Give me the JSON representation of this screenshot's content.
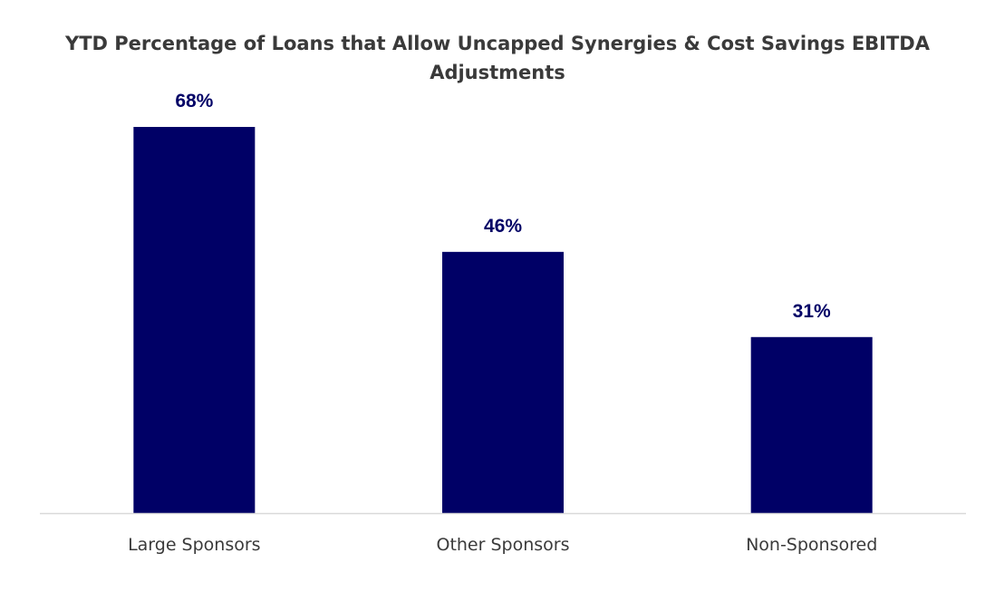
{
  "chart_data": {
    "type": "bar",
    "title_lines": [
      "YTD Percentage of Loans that Allow Uncapped Synergies & Cost Savings EBITDA",
      "Adjustments"
    ],
    "categories": [
      "Large Sponsors",
      "Other Sponsors",
      "Non-Sponsored"
    ],
    "values": [
      68,
      46,
      31
    ],
    "data_labels": [
      "68%",
      "46%",
      "31%"
    ],
    "value_unit": "%",
    "ylim": [
      0,
      68
    ],
    "grid": false,
    "legend": "none",
    "bar_color": "#000066",
    "axis_color": "#d9d9d9"
  }
}
